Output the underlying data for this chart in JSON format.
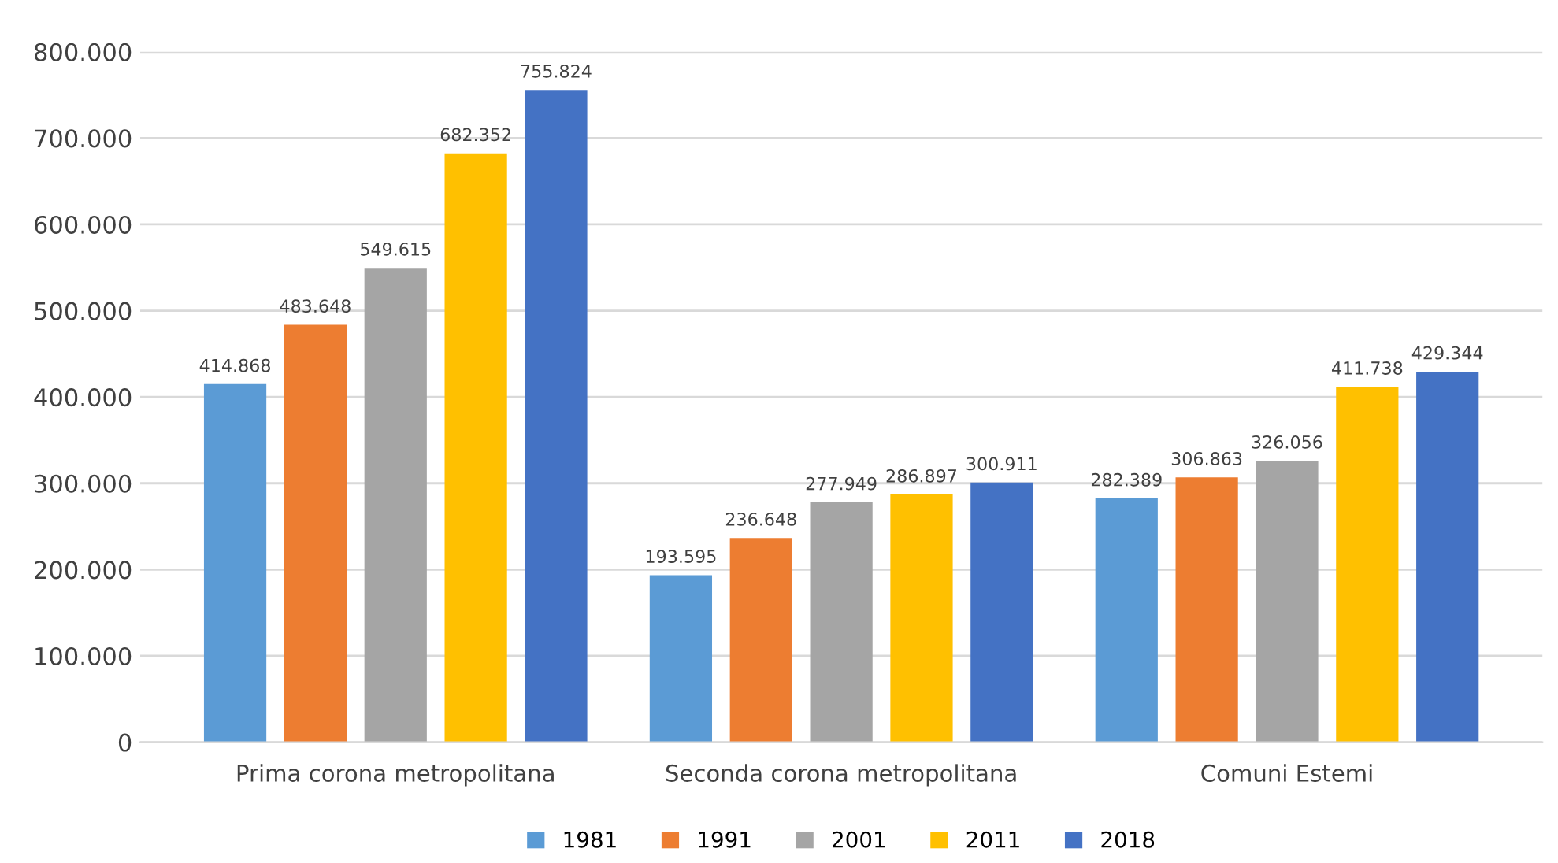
{
  "chart_data": {
    "type": "bar",
    "categories": [
      "Prima corona metropolitana",
      "Seconda corona metropolitana",
      "Comuni Estemi"
    ],
    "series": [
      {
        "name": "1981",
        "color": "#5b9bd5",
        "values": [
          414868,
          193595,
          282389
        ],
        "value_labels": [
          "414.868",
          "193.595",
          "282.389"
        ]
      },
      {
        "name": "1991",
        "color": "#ed7d31",
        "values": [
          483648,
          236648,
          306863
        ],
        "value_labels": [
          "483.648",
          "236.648",
          "306.863"
        ]
      },
      {
        "name": "2001",
        "color": "#a5a5a5",
        "values": [
          549615,
          277949,
          326056
        ],
        "value_labels": [
          "549.615",
          "277.949",
          "326.056"
        ]
      },
      {
        "name": "2011",
        "color": "#ffc000",
        "values": [
          682352,
          286897,
          411738
        ],
        "value_labels": [
          "682.352",
          "286.897",
          "411.738"
        ]
      },
      {
        "name": "2018",
        "color": "#4472c4",
        "values": [
          755824,
          300911,
          429344
        ],
        "value_labels": [
          "755.824",
          "300.911",
          "429.344"
        ]
      }
    ],
    "ylim": [
      0,
      800000
    ],
    "yticks": [
      0,
      {
        "value": 100000,
        "label": "100.000"
      },
      {
        "value": 200000,
        "label": "200.000"
      },
      {
        "value": 300000,
        "label": "300.000"
      },
      {
        "value": 400000,
        "label": "400.000"
      },
      {
        "value": 500000,
        "label": "500.000"
      },
      {
        "value": 600000,
        "label": "600.000"
      },
      {
        "value": 700000,
        "label": "700.000"
      },
      {
        "value": 800000,
        "label": "800.000"
      }
    ],
    "grid": "y",
    "legend": "bottom"
  }
}
